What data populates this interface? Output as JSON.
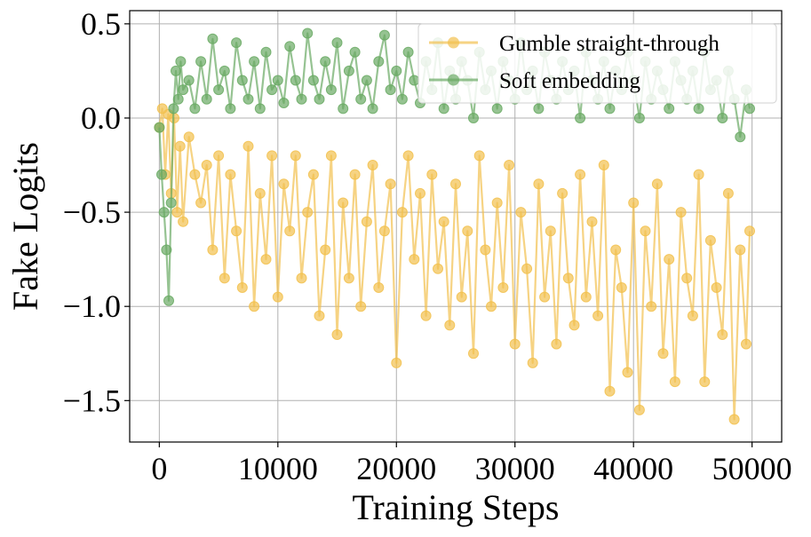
{
  "chart_data": {
    "type": "line",
    "xlabel": "Training Steps",
    "ylabel": "Fake Logits",
    "xlim": [
      -2500,
      52500
    ],
    "ylim": [
      -1.72,
      0.57
    ],
    "xticks": [
      0,
      10000,
      20000,
      30000,
      40000,
      50000
    ],
    "xtick_labels": [
      "0",
      "10000",
      "20000",
      "30000",
      "40000",
      "50000"
    ],
    "yticks": [
      0.5,
      0.0,
      -0.5,
      -1.0,
      -1.5
    ],
    "ytick_labels": [
      "0.5",
      "0.0",
      "−0.5",
      "−1.0",
      "−1.5"
    ],
    "grid": true,
    "legend_position": "top-right",
    "series": [
      {
        "name": "Gumble straight-through",
        "color": "#f2c14e",
        "x": [
          0,
          250,
          500,
          750,
          1000,
          1250,
          1500,
          1750,
          2000,
          2500,
          3000,
          3500,
          4000,
          4500,
          5000,
          5500,
          6000,
          6500,
          7000,
          7500,
          8000,
          8500,
          9000,
          9500,
          10000,
          10500,
          11000,
          11500,
          12000,
          12500,
          13000,
          13500,
          14000,
          14500,
          15000,
          15500,
          16000,
          16500,
          17000,
          17500,
          18000,
          18500,
          19000,
          19500,
          20000,
          20500,
          21000,
          21500,
          22000,
          22500,
          23000,
          23500,
          24000,
          24500,
          25000,
          25500,
          26000,
          26500,
          27000,
          27500,
          28000,
          28500,
          29000,
          29500,
          30000,
          30500,
          31000,
          31500,
          32000,
          32500,
          33000,
          33500,
          34000,
          34500,
          35000,
          35500,
          36000,
          36500,
          37000,
          37500,
          38000,
          38500,
          39000,
          39500,
          40000,
          40500,
          41000,
          41500,
          42000,
          42500,
          43000,
          43500,
          44000,
          44500,
          45000,
          45500,
          46000,
          46500,
          47000,
          47500,
          48000,
          48500,
          49000,
          49500,
          49800
        ],
        "values": [
          -0.05,
          0.05,
          -0.3,
          0.02,
          -0.4,
          0.0,
          -0.5,
          -0.15,
          -0.55,
          -0.1,
          -0.3,
          -0.45,
          -0.25,
          -0.7,
          -0.2,
          -0.85,
          -0.3,
          -0.6,
          -0.9,
          -0.15,
          -1.0,
          -0.4,
          -0.75,
          -0.2,
          -0.95,
          -0.35,
          -0.6,
          -0.2,
          -0.85,
          -0.5,
          -0.3,
          -1.05,
          -0.7,
          -0.2,
          -1.15,
          -0.45,
          -0.85,
          -0.3,
          -1.0,
          -0.55,
          -0.25,
          -0.9,
          -0.6,
          -0.35,
          -1.3,
          -0.5,
          -0.2,
          -0.75,
          -0.4,
          -1.05,
          -0.3,
          -0.8,
          -0.55,
          -1.1,
          -0.35,
          -0.95,
          -0.6,
          -1.25,
          -0.2,
          -0.7,
          -1.0,
          -0.45,
          -0.9,
          -0.25,
          -1.2,
          -0.5,
          -0.8,
          -1.3,
          -0.35,
          -0.95,
          -0.6,
          -1.2,
          -0.4,
          -0.85,
          -1.1,
          -0.3,
          -0.95,
          -0.55,
          -1.05,
          -0.25,
          -1.45,
          -0.7,
          -0.9,
          -1.35,
          -0.45,
          -1.55,
          -0.6,
          -1.0,
          -0.35,
          -1.25,
          -0.75,
          -1.4,
          -0.5,
          -0.85,
          -1.05,
          -0.3,
          -1.4,
          -0.65,
          -0.9,
          -1.15,
          -0.4,
          -1.6,
          -0.7,
          -1.2,
          -0.6
        ]
      },
      {
        "name": "Soft embedding",
        "color": "#6aaa64",
        "x": [
          0,
          200,
          400,
          600,
          800,
          1000,
          1200,
          1400,
          1600,
          1800,
          2000,
          2500,
          3000,
          3500,
          4000,
          4500,
          5000,
          5500,
          6000,
          6500,
          7000,
          7500,
          8000,
          8500,
          9000,
          9500,
          10000,
          10500,
          11000,
          11500,
          12000,
          12500,
          13000,
          13500,
          14000,
          14500,
          15000,
          15500,
          16000,
          16500,
          17000,
          17500,
          18000,
          18500,
          19000,
          19500,
          20000,
          20500,
          21000,
          21500,
          22000,
          22500,
          23000,
          23500,
          24000,
          24500,
          25000,
          25500,
          26000,
          26500,
          27000,
          27500,
          28000,
          28500,
          29000,
          29500,
          30000,
          30500,
          31000,
          31500,
          32000,
          32500,
          33000,
          33500,
          34000,
          34500,
          35000,
          35500,
          36000,
          36500,
          37000,
          37500,
          38000,
          38500,
          39000,
          39500,
          40000,
          40500,
          41000,
          41500,
          42000,
          42500,
          43000,
          43500,
          44000,
          44500,
          45000,
          45500,
          46000,
          46500,
          47000,
          47500,
          48000,
          48500,
          49000,
          49500,
          49800
        ],
        "values": [
          -0.05,
          -0.3,
          -0.5,
          -0.7,
          -0.97,
          -0.45,
          0.05,
          0.25,
          0.1,
          0.3,
          0.15,
          0.2,
          0.05,
          0.3,
          0.1,
          0.42,
          0.15,
          0.25,
          0.05,
          0.4,
          0.2,
          0.1,
          0.3,
          0.05,
          0.35,
          0.15,
          0.2,
          0.08,
          0.38,
          0.2,
          0.1,
          0.45,
          0.2,
          0.1,
          0.3,
          0.15,
          0.4,
          0.05,
          0.25,
          0.35,
          0.1,
          0.2,
          0.05,
          0.3,
          0.44,
          0.15,
          0.25,
          0.1,
          0.35,
          0.2,
          0.08,
          0.3,
          0.15,
          0.4,
          0.05,
          0.25,
          0.1,
          0.3,
          0.2,
          0.0,
          0.35,
          0.15,
          0.25,
          0.05,
          0.3,
          0.2,
          0.1,
          0.4,
          0.15,
          0.25,
          0.05,
          0.35,
          0.2,
          0.1,
          0.3,
          0.15,
          0.25,
          0.0,
          0.35,
          0.2,
          0.1,
          0.3,
          0.05,
          0.25,
          0.15,
          0.35,
          0.2,
          0.0,
          0.3,
          0.1,
          0.25,
          0.15,
          0.05,
          0.3,
          0.2,
          0.1,
          0.25,
          0.05,
          0.35,
          0.15,
          0.2,
          0.0,
          0.25,
          0.1,
          -0.1,
          0.15,
          0.05
        ]
      }
    ]
  }
}
